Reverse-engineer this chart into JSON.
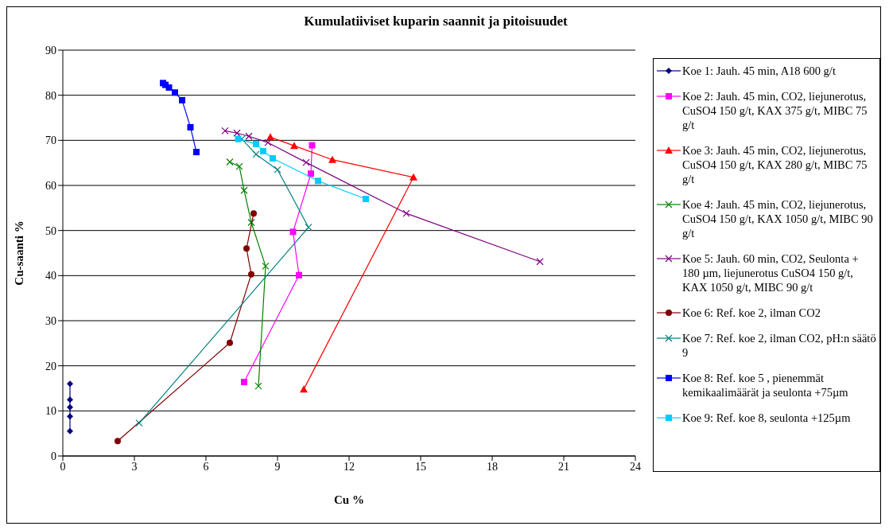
{
  "chart_data": {
    "type": "line",
    "title": "Kumulatiiviset kuparin saannit ja pitoisuudet",
    "xlabel": "Cu %",
    "ylabel": "Cu-saanti %",
    "xlim": [
      0,
      24
    ],
    "xticks": [
      0,
      3,
      6,
      9,
      12,
      15,
      18,
      21,
      24
    ],
    "ylim": [
      0,
      90
    ],
    "yticks": [
      0,
      10,
      20,
      30,
      40,
      50,
      60,
      70,
      80,
      90
    ],
    "grid": "y",
    "legend": "right",
    "line_style": "solid",
    "series": [
      {
        "name": "Koe 1: Jauh. 45 min, A18 600 g/t",
        "color": "#000080",
        "marker": "diamond",
        "x": [
          0.3,
          0.3,
          0.3,
          0.3,
          0.3
        ],
        "values": [
          16,
          12.5,
          10.8,
          8.8,
          5.5
        ]
      },
      {
        "name": "Koe 2: Jauh. 45 min, CO2, liejunerotus, CuSO4 150 g/t, KAX 375 g/t, MIBC 75 g/t",
        "color": "#ff00ff",
        "marker": "square",
        "x": [
          7.6,
          9.9,
          9.65,
          10.4,
          10.45
        ],
        "values": [
          16.4,
          40.1,
          49.7,
          62.6,
          68.9
        ]
      },
      {
        "name": "Koe 3: Jauh. 45 min, CO2, liejunerotus, CuSO4 150 g/t, KAX 280 g/t, MIBC 75 g/t",
        "color": "#ff0000",
        "marker": "triangle",
        "x": [
          10.1,
          14.7,
          11.3,
          9.7,
          8.7
        ],
        "values": [
          14.8,
          61.8,
          65.7,
          68.8,
          70.7
        ]
      },
      {
        "name": "Koe 4: Jauh. 45 min, CO2, liejunerotus, CuSO4 150 g/t, KAX 1050 g/t, MIBC 90 g/t",
        "color": "#008000",
        "marker": "cross",
        "x": [
          8.2,
          8.5,
          7.9,
          7.6,
          7.4,
          7.0
        ],
        "values": [
          15.5,
          42.1,
          51.8,
          58.9,
          64.2,
          65.2
        ]
      },
      {
        "name": "Koe 5: Jauh. 60 min, CO2, Seulonta + 180 µm, liejunerotus CuSO4 150 g/t, KAX 1050 g/t, MIBC 90 g/t",
        "color": "#800080",
        "marker": "cross",
        "x": [
          6.8,
          7.3,
          7.8,
          8.6,
          10.2,
          14.4,
          20
        ],
        "values": [
          72.1,
          71.6,
          70.9,
          69.5,
          65.1,
          53.8,
          43.1
        ]
      },
      {
        "name": "Koe 6: Ref.  koe 2,  ilman CO2",
        "color": "#800000",
        "marker": "circle",
        "x": [
          2.3,
          7.0,
          7.9,
          7.7,
          8.0
        ],
        "values": [
          3.3,
          25.1,
          40.3,
          46,
          53.8
        ]
      },
      {
        "name": "Koe 7: Ref.  koe 2,  ilman CO2, pH:n säätö 9",
        "color": "#008080",
        "marker": "cross",
        "x": [
          3.2,
          10.3,
          9.0,
          8.1,
          7.5
        ],
        "values": [
          7.3,
          50.7,
          63.5,
          66.9,
          70.3
        ]
      },
      {
        "name": "Koe 8: Ref.  koe 5 , pienemmät kemikaalimäärät ja seulonta +75µm",
        "color": "#0000ff",
        "marker": "square",
        "x": [
          4.2,
          4.3,
          4.45,
          4.7,
          5.0,
          5.35,
          5.6
        ],
        "values": [
          82.7,
          82.3,
          81.7,
          80.6,
          78.9,
          72.9,
          67.4
        ]
      },
      {
        "name": "Koe 9: Ref.  koe 8, seulonta +125µm",
        "color": "#00ccff",
        "marker": "square",
        "x": [
          7.35,
          8.1,
          8.4,
          8.8,
          10.7,
          12.7
        ],
        "values": [
          70.3,
          69.2,
          67.6,
          66,
          61,
          57
        ]
      }
    ]
  }
}
